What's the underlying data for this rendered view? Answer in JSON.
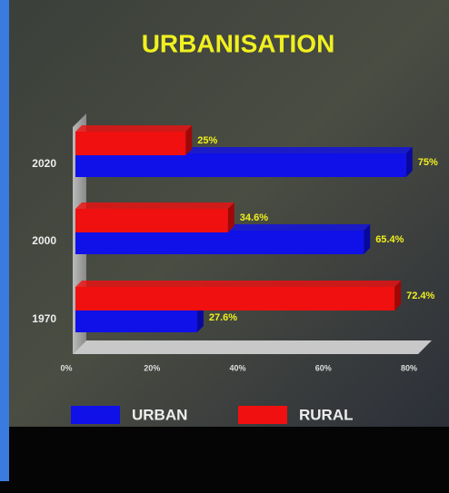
{
  "chart_data": {
    "type": "bar",
    "orientation": "horizontal",
    "title": "URBANISATION",
    "categories": [
      "2020",
      "2000",
      "1970"
    ],
    "series": [
      {
        "name": "URBAN",
        "color": "#1010e8",
        "values": [
          75,
          65.4,
          27.6
        ],
        "value_labels": [
          "75%",
          "65.4%",
          "27.6%"
        ]
      },
      {
        "name": "RURAL",
        "color": "#f01010",
        "values": [
          25,
          34.6,
          72.4
        ],
        "value_labels": [
          "25%",
          "34.6%",
          "72.4%"
        ]
      }
    ],
    "xlim": [
      0,
      80
    ],
    "xticks": [
      {
        "value": 0,
        "label": "0%"
      },
      {
        "value": 20,
        "label": "20%"
      },
      {
        "value": 40,
        "label": "40%"
      },
      {
        "value": 60,
        "label": "60%"
      },
      {
        "value": 80,
        "label": "80%"
      }
    ],
    "legend": "bottom"
  }
}
